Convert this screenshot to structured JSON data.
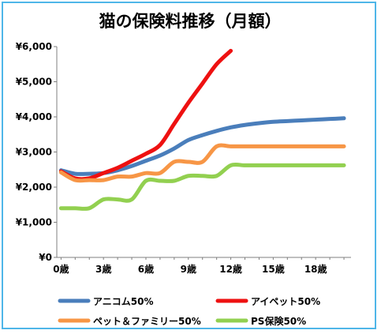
{
  "chart_data": {
    "type": "line",
    "title": "猫の保険料推移（月額）",
    "xlabel": "",
    "ylabel": "",
    "x": [
      0,
      1,
      2,
      3,
      4,
      5,
      6,
      7,
      8,
      9,
      10,
      11,
      12,
      13,
      14,
      15,
      16,
      17,
      18,
      19,
      20
    ],
    "x_tick_labels": [
      {
        "x": 0,
        "label": "0歳"
      },
      {
        "x": 3,
        "label": "3歳"
      },
      {
        "x": 6,
        "label": "6歳"
      },
      {
        "x": 9,
        "label": "9歳"
      },
      {
        "x": 12,
        "label": "12歳"
      },
      {
        "x": 15,
        "label": "15歳"
      },
      {
        "x": 18,
        "label": "18歳"
      }
    ],
    "y_tick_labels": [
      {
        "y": 0,
        "label": "¥0"
      },
      {
        "y": 1000,
        "label": "¥1,000"
      },
      {
        "y": 2000,
        "label": "¥2,000"
      },
      {
        "y": 3000,
        "label": "¥3,000"
      },
      {
        "y": 4000,
        "label": "¥4,000"
      },
      {
        "y": 5000,
        "label": "¥5,000"
      },
      {
        "y": 6000,
        "label": "¥6,000"
      }
    ],
    "xlim": [
      -0.3,
      20.5
    ],
    "ylim": [
      0,
      6000
    ],
    "grid": false,
    "legend_position": "bottom",
    "series": [
      {
        "name": "アニコム50%",
        "color": "#4a7ebb",
        "values": [
          2480,
          2380,
          2380,
          2400,
          2480,
          2600,
          2750,
          2900,
          3100,
          3340,
          3480,
          3600,
          3700,
          3770,
          3820,
          3860,
          3880,
          3900,
          3920,
          3940,
          3960
        ]
      },
      {
        "name": "アイペット50%",
        "color": "#ee1111",
        "values": [
          2450,
          2250,
          2250,
          2400,
          2550,
          2750,
          2950,
          3200,
          3800,
          4400,
          4950,
          5500,
          5880,
          null,
          null,
          null,
          null,
          null,
          null,
          null,
          null
        ]
      },
      {
        "name": "ペット＆ファミリー50%",
        "color": "#f79646",
        "values": [
          2420,
          2200,
          2200,
          2200,
          2300,
          2300,
          2400,
          2400,
          2720,
          2720,
          2720,
          3160,
          3160,
          3160,
          3160,
          3160,
          3160,
          3160,
          3160,
          3160,
          3160
        ]
      },
      {
        "name": "PS保険50%",
        "color": "#92d050",
        "values": [
          1400,
          1400,
          1400,
          1650,
          1650,
          1650,
          2180,
          2180,
          2180,
          2320,
          2320,
          2320,
          2620,
          2620,
          2620,
          2620,
          2620,
          2620,
          2620,
          2620,
          2620
        ]
      }
    ]
  }
}
